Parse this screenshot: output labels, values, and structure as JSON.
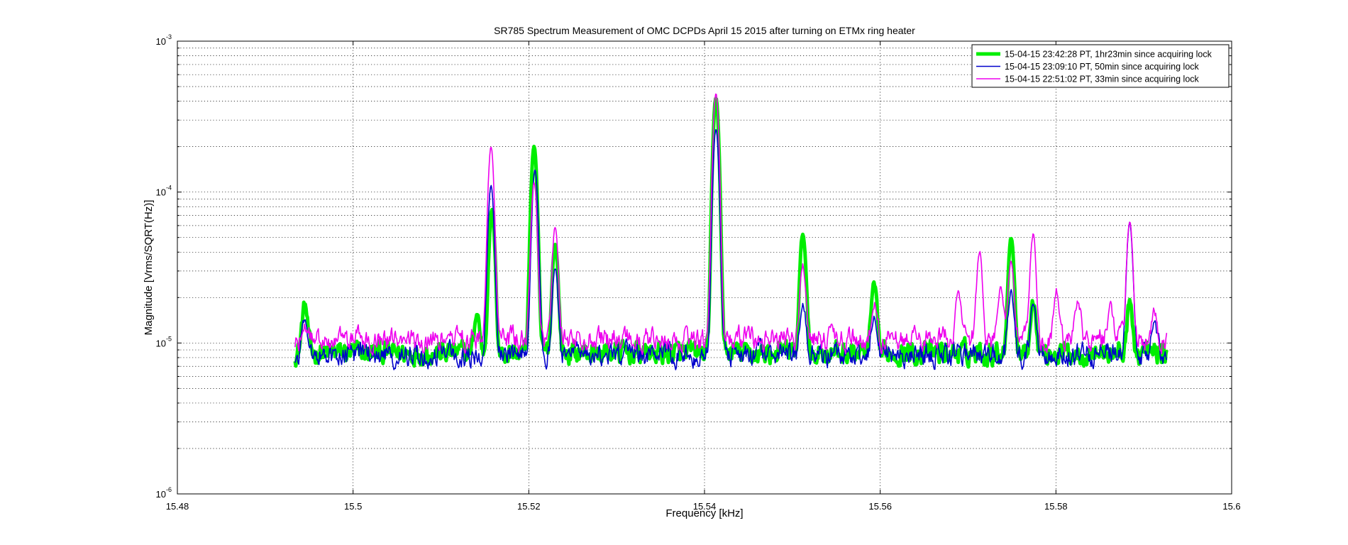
{
  "chart_data": {
    "type": "line",
    "title": "SR785 Spectrum Measurement of OMC DCPDs April 15 2015 after turning on ETMx ring heater",
    "xlabel": "Frequency [kHz]",
    "ylabel": "Magnitude [Vrms/SQRT(Hz)]",
    "xlim": [
      15.48,
      15.6
    ],
    "ylim": [
      1e-06,
      0.001
    ],
    "yscale": "log",
    "grid": true,
    "legend_position": "top-right",
    "x_ticks": [
      "15.48",
      "15.5",
      "15.52",
      "15.54",
      "15.56",
      "15.58",
      "15.6"
    ],
    "x_tick_values": [
      15.48,
      15.5,
      15.52,
      15.54,
      15.56,
      15.58,
      15.6
    ],
    "y_ticks": [
      {
        "base": "10",
        "exp": "-6",
        "value": 1e-06
      },
      {
        "base": "10",
        "exp": "-5",
        "value": 1e-05
      },
      {
        "base": "10",
        "exp": "-4",
        "value": 0.0001
      },
      {
        "base": "10",
        "exp": "-3",
        "value": 0.001
      }
    ],
    "series": [
      {
        "name": "15-04-15 23:42:28 PT, 1hr23min since acquiring lock",
        "color": "#00ee00",
        "x_range": [
          15.4934,
          15.5926
        ],
        "baseline": 8.6e-06,
        "peaks": [
          {
            "f": 15.4945,
            "v": 1.8e-05
          },
          {
            "f": 15.5141,
            "v": 1.55e-05
          },
          {
            "f": 15.5158,
            "v": 7.5e-05
          },
          {
            "f": 15.5206,
            "v": 0.0002
          },
          {
            "f": 15.523,
            "v": 4.5e-05
          },
          {
            "f": 15.5413,
            "v": 0.00042
          },
          {
            "f": 15.5512,
            "v": 5.3e-05
          },
          {
            "f": 15.5593,
            "v": 2.4e-05
          },
          {
            "f": 15.5749,
            "v": 5e-05
          },
          {
            "f": 15.5774,
            "v": 1.9e-05
          },
          {
            "f": 15.5884,
            "v": 1.8e-05
          }
        ]
      },
      {
        "name": "15-04-15 23:09:10 PT, 50min since acquiring lock",
        "color": "#0000cc",
        "x_range": [
          15.4934,
          15.5926
        ],
        "baseline": 8.4e-06,
        "peaks": [
          {
            "f": 15.4945,
            "v": 1.5e-05
          },
          {
            "f": 15.5157,
            "v": 0.00011
          },
          {
            "f": 15.5207,
            "v": 0.00014
          },
          {
            "f": 15.523,
            "v": 3e-05
          },
          {
            "f": 15.5413,
            "v": 0.00026
          },
          {
            "f": 15.5512,
            "v": 1.9e-05
          },
          {
            "f": 15.5593,
            "v": 1.6e-05
          },
          {
            "f": 15.5749,
            "v": 2.2e-05
          },
          {
            "f": 15.5774,
            "v": 1.8e-05
          },
          {
            "f": 15.5884,
            "v": 6.3e-05
          },
          {
            "f": 15.5912,
            "v": 1.3e-05
          }
        ]
      },
      {
        "name": "15-04-15 22:51:02 PT, 33min since acquiring lock",
        "color": "#ee00ee",
        "x_range": [
          15.4934,
          15.5926
        ],
        "baseline": 1.06e-05,
        "peaks": [
          {
            "f": 15.4945,
            "v": 1.4e-05
          },
          {
            "f": 15.5157,
            "v": 0.0002
          },
          {
            "f": 15.5206,
            "v": 0.000115
          },
          {
            "f": 15.523,
            "v": 5.8e-05
          },
          {
            "f": 15.5413,
            "v": 0.00045
          },
          {
            "f": 15.5512,
            "v": 3.3e-05
          },
          {
            "f": 15.5593,
            "v": 1.8e-05
          },
          {
            "f": 15.5689,
            "v": 2.3e-05
          },
          {
            "f": 15.5713,
            "v": 4e-05
          },
          {
            "f": 15.5737,
            "v": 2.3e-05
          },
          {
            "f": 15.5749,
            "v": 3.5e-05
          },
          {
            "f": 15.5774,
            "v": 5.2e-05
          },
          {
            "f": 15.5801,
            "v": 2.2e-05
          },
          {
            "f": 15.5825,
            "v": 1.9e-05
          },
          {
            "f": 15.5862,
            "v": 1.6e-05
          },
          {
            "f": 15.5884,
            "v": 6.5e-05
          },
          {
            "f": 15.5912,
            "v": 1.6e-05
          }
        ]
      }
    ]
  }
}
